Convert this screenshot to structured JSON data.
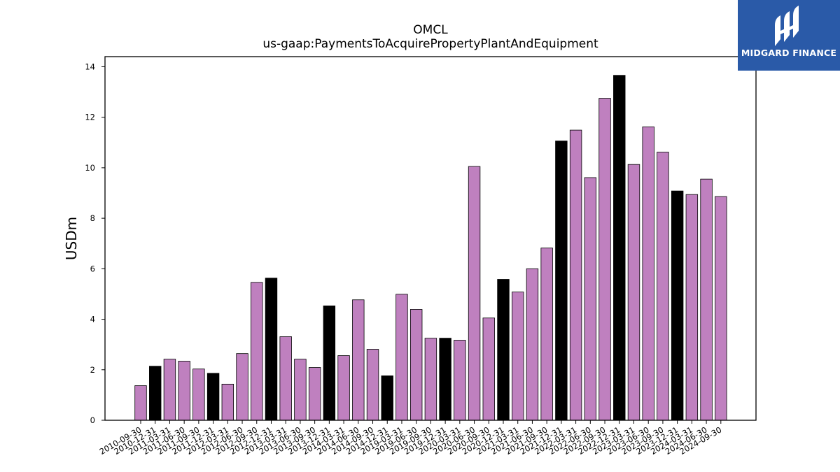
{
  "logo": {
    "text": "MIDGARD FINANCE",
    "bg_color": "#2a5aa8"
  },
  "chart_data": {
    "type": "bar",
    "title": "OMCL",
    "subtitle": "us-gaap:PaymentsToAcquirePropertyPlantAndEquipment",
    "xlabel": "",
    "ylabel": "USDm",
    "ylim": [
      0,
      14.4
    ],
    "yticks": [
      0,
      2,
      4,
      6,
      8,
      10,
      12,
      14
    ],
    "grid": false,
    "colors": {
      "quarter": "#bf80bf",
      "year_end": "#000000",
      "edge": "#000000"
    },
    "categories": [
      "2010-09-30",
      "2010-12-31",
      "2011-03-31",
      "2011-06-30",
      "2011-09-30",
      "2011-12-31",
      "2012-03-31",
      "2012-06-30",
      "2012-09-30",
      "2012-12-31",
      "2013-03-31",
      "2013-06-30",
      "2013-09-30",
      "2013-12-31",
      "2014-03-31",
      "2014-06-30",
      "2014-09-30",
      "2014-12-31",
      "2019-03-31",
      "2019-06-30",
      "2019-09-30",
      "2019-12-31",
      "2020-03-31",
      "2020-06-30",
      "2020-09-30",
      "2020-12-31",
      "2021-03-31",
      "2021-06-30",
      "2021-09-30",
      "2021-12-31",
      "2022-03-31",
      "2022-06-30",
      "2022-09-30",
      "2022-12-31",
      "2023-03-31",
      "2023-06-30",
      "2023-09-30",
      "2023-12-31",
      "2024-03-31",
      "2024-06-30",
      "2024-09-30"
    ],
    "values": [
      1.37,
      2.14,
      2.42,
      2.34,
      2.03,
      1.86,
      1.43,
      2.64,
      5.46,
      5.63,
      3.31,
      2.42,
      2.09,
      4.53,
      2.56,
      4.77,
      2.81,
      1.76,
      4.99,
      4.39,
      3.25,
      3.25,
      3.17,
      10.05,
      4.05,
      5.58,
      5.08,
      6.0,
      6.82,
      11.06,
      11.49,
      9.61,
      12.75,
      13.66,
      10.13,
      11.62,
      10.62,
      9.08,
      8.94,
      9.55,
      8.86
    ]
  }
}
